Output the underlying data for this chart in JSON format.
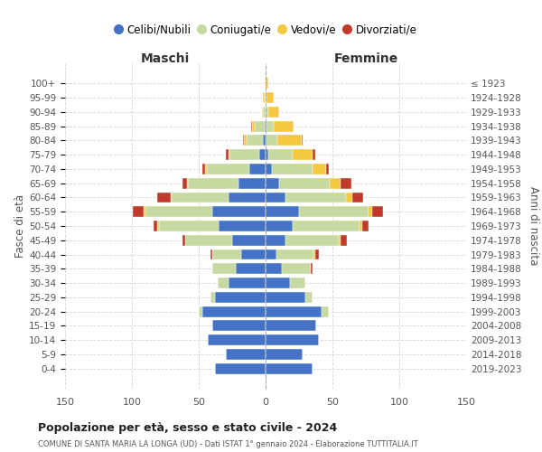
{
  "age_groups": [
    "0-4",
    "5-9",
    "10-14",
    "15-19",
    "20-24",
    "25-29",
    "30-34",
    "35-39",
    "40-44",
    "45-49",
    "50-54",
    "55-59",
    "60-64",
    "65-69",
    "70-74",
    "75-79",
    "80-84",
    "85-89",
    "90-94",
    "95-99",
    "100+"
  ],
  "birth_years": [
    "2019-2023",
    "2014-2018",
    "2009-2013",
    "2004-2008",
    "1999-2003",
    "1994-1998",
    "1989-1993",
    "1984-1988",
    "1979-1983",
    "1974-1978",
    "1969-1973",
    "1964-1968",
    "1959-1963",
    "1954-1958",
    "1949-1953",
    "1944-1948",
    "1939-1943",
    "1934-1938",
    "1929-1933",
    "1924-1928",
    "≤ 1923"
  ],
  "males": {
    "celibi": [
      38,
      30,
      43,
      40,
      47,
      38,
      28,
      22,
      18,
      25,
      35,
      40,
      28,
      20,
      12,
      5,
      2,
      1,
      0,
      0,
      0
    ],
    "coniugati": [
      0,
      0,
      0,
      0,
      3,
      3,
      8,
      18,
      22,
      35,
      45,
      50,
      42,
      38,
      32,
      22,
      12,
      7,
      2,
      1,
      0
    ],
    "vedovi": [
      0,
      0,
      0,
      0,
      0,
      0,
      0,
      0,
      0,
      0,
      1,
      1,
      1,
      1,
      1,
      1,
      2,
      2,
      1,
      1,
      1
    ],
    "divorziati": [
      0,
      0,
      0,
      0,
      0,
      0,
      0,
      0,
      1,
      2,
      3,
      8,
      10,
      3,
      2,
      2,
      1,
      1,
      0,
      0,
      0
    ]
  },
  "females": {
    "nubili": [
      35,
      28,
      40,
      38,
      42,
      30,
      18,
      12,
      8,
      15,
      20,
      25,
      15,
      10,
      5,
      2,
      1,
      1,
      0,
      0,
      0
    ],
    "coniugate": [
      0,
      0,
      0,
      0,
      5,
      5,
      12,
      22,
      28,
      40,
      50,
      52,
      45,
      38,
      30,
      18,
      8,
      5,
      2,
      1,
      0
    ],
    "vedove": [
      0,
      0,
      0,
      0,
      0,
      0,
      0,
      0,
      1,
      1,
      2,
      3,
      5,
      8,
      10,
      15,
      18,
      15,
      8,
      5,
      2
    ],
    "divorziate": [
      0,
      0,
      0,
      0,
      0,
      0,
      0,
      1,
      3,
      5,
      5,
      8,
      8,
      8,
      2,
      2,
      1,
      0,
      0,
      0,
      0
    ]
  },
  "colors": {
    "celibi": "#4472c4",
    "coniugati": "#c5d9a0",
    "vedovi": "#f5c842",
    "divorziati": "#c0392b"
  },
  "xlim": 150,
  "title": "Popolazione per età, sesso e stato civile - 2024",
  "subtitle": "COMUNE DI SANTA MARIA LA LONGA (UD) - Dati ISTAT 1° gennaio 2024 - Elaborazione TUTTITALIA.IT",
  "ylabel_left": "Fasce di età",
  "ylabel_right": "Anni di nascita",
  "xlabel_left": "Maschi",
  "xlabel_right": "Femmine",
  "legend_labels": [
    "Celibi/Nubili",
    "Coniugati/e",
    "Vedovi/e",
    "Divorziati/e"
  ],
  "background_color": "#ffffff",
  "grid_color": "#cccccc"
}
